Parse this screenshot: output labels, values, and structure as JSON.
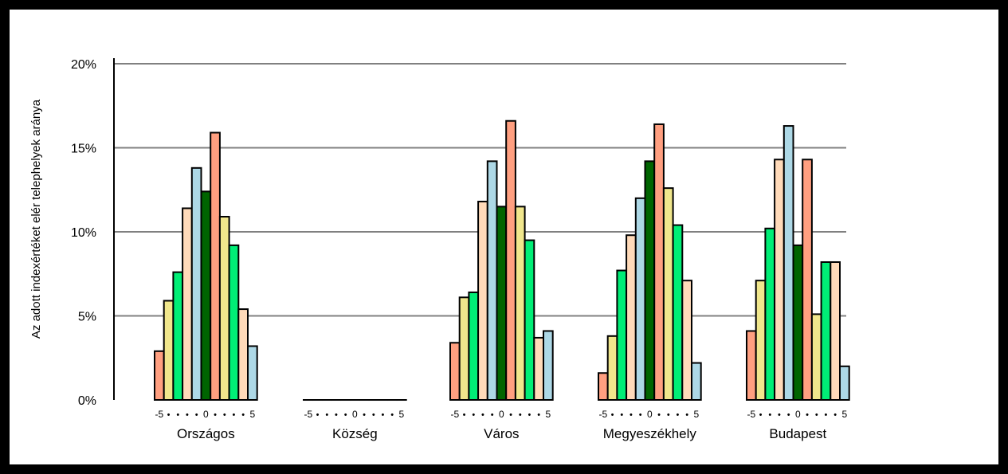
{
  "chart_data": {
    "type": "bar",
    "title": "",
    "ylabel": "Az adott indexértéket elér   telephelyek aránya",
    "xlabel": "",
    "ylim": [
      0,
      20
    ],
    "yticks": [
      0,
      5,
      10,
      15,
      20
    ],
    "ytick_labels": [
      "0%",
      "5%",
      "10%",
      "15%",
      "20%"
    ],
    "grid": true,
    "legend": "none",
    "categories": [
      "Országos",
      "Község",
      "Város",
      "Megyeszékhely",
      "Budapest"
    ],
    "sub_x_axis": {
      "values": [
        -5,
        -4,
        -3,
        -2,
        -1,
        0,
        1,
        2,
        3,
        4,
        5
      ],
      "labels": [
        "-5",
        "•",
        "•",
        "•",
        "•",
        "0",
        "•",
        "•",
        "•",
        "•",
        "5"
      ]
    },
    "bar_colors": [
      "#ff9f80",
      "#f0e68c",
      "#00ee76",
      "#ffdab9",
      "#add8e6",
      "#006400",
      "#ff9f80",
      "#f0e68c",
      "#00ee76",
      "#ffdab9",
      "#add8e6"
    ],
    "groups": [
      {
        "name": "Országos",
        "values": [
          2.9,
          5.9,
          7.6,
          11.4,
          13.8,
          12.4,
          15.9,
          10.9,
          9.2,
          5.4,
          3.2
        ]
      },
      {
        "name": "Község",
        "values": [
          0,
          0,
          0,
          0,
          0,
          0,
          0,
          0,
          0,
          0,
          0
        ]
      },
      {
        "name": "Város",
        "values": [
          3.4,
          6.1,
          6.4,
          11.8,
          14.2,
          11.5,
          16.6,
          11.5,
          9.5,
          3.7,
          4.1
        ]
      },
      {
        "name": "Megyeszékhely",
        "values": [
          1.6,
          3.8,
          7.7,
          9.8,
          12.0,
          14.2,
          16.4,
          12.6,
          10.4,
          7.1,
          2.2
        ]
      },
      {
        "name": "Budapest",
        "values": [
          4.1,
          7.1,
          10.2,
          14.3,
          16.3,
          9.2,
          14.3,
          5.1,
          8.2,
          8.2,
          2.0
        ]
      }
    ]
  }
}
